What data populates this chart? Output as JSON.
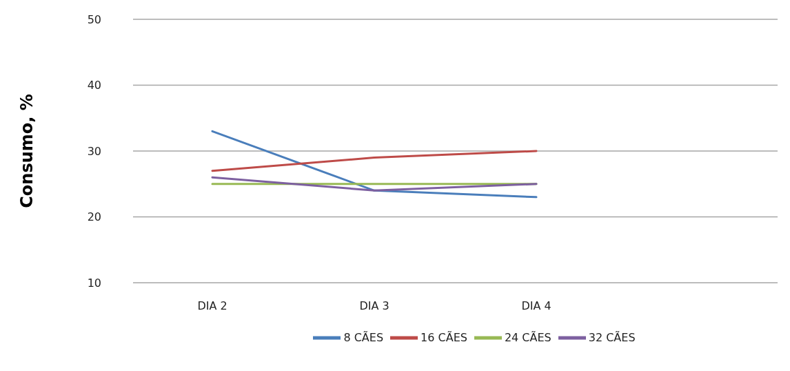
{
  "chart_data": {
    "type": "line",
    "ylabel": "Consumo, %",
    "categories": [
      "DIA 2",
      "DIA 3",
      "DIA 4",
      null
    ],
    "series": [
      {
        "name": "8 CÃES",
        "color": "#4a7ebb",
        "values": [
          33,
          24,
          23,
          null
        ]
      },
      {
        "name": "16 CÃES",
        "color": "#be4b48",
        "values": [
          27,
          29,
          30,
          null
        ]
      },
      {
        "name": "24 CÃES",
        "color": "#98b954",
        "values": [
          25,
          25,
          25,
          null
        ]
      },
      {
        "name": "32 CÃES",
        "color": "#7d60a0",
        "values": [
          26,
          24,
          25,
          null
        ]
      }
    ],
    "ylim": [
      10,
      50
    ],
    "yticks": [
      10,
      20,
      30,
      40,
      50
    ],
    "grid": "y",
    "legend": "bottom",
    "marker": "none",
    "line_style": "solid"
  }
}
